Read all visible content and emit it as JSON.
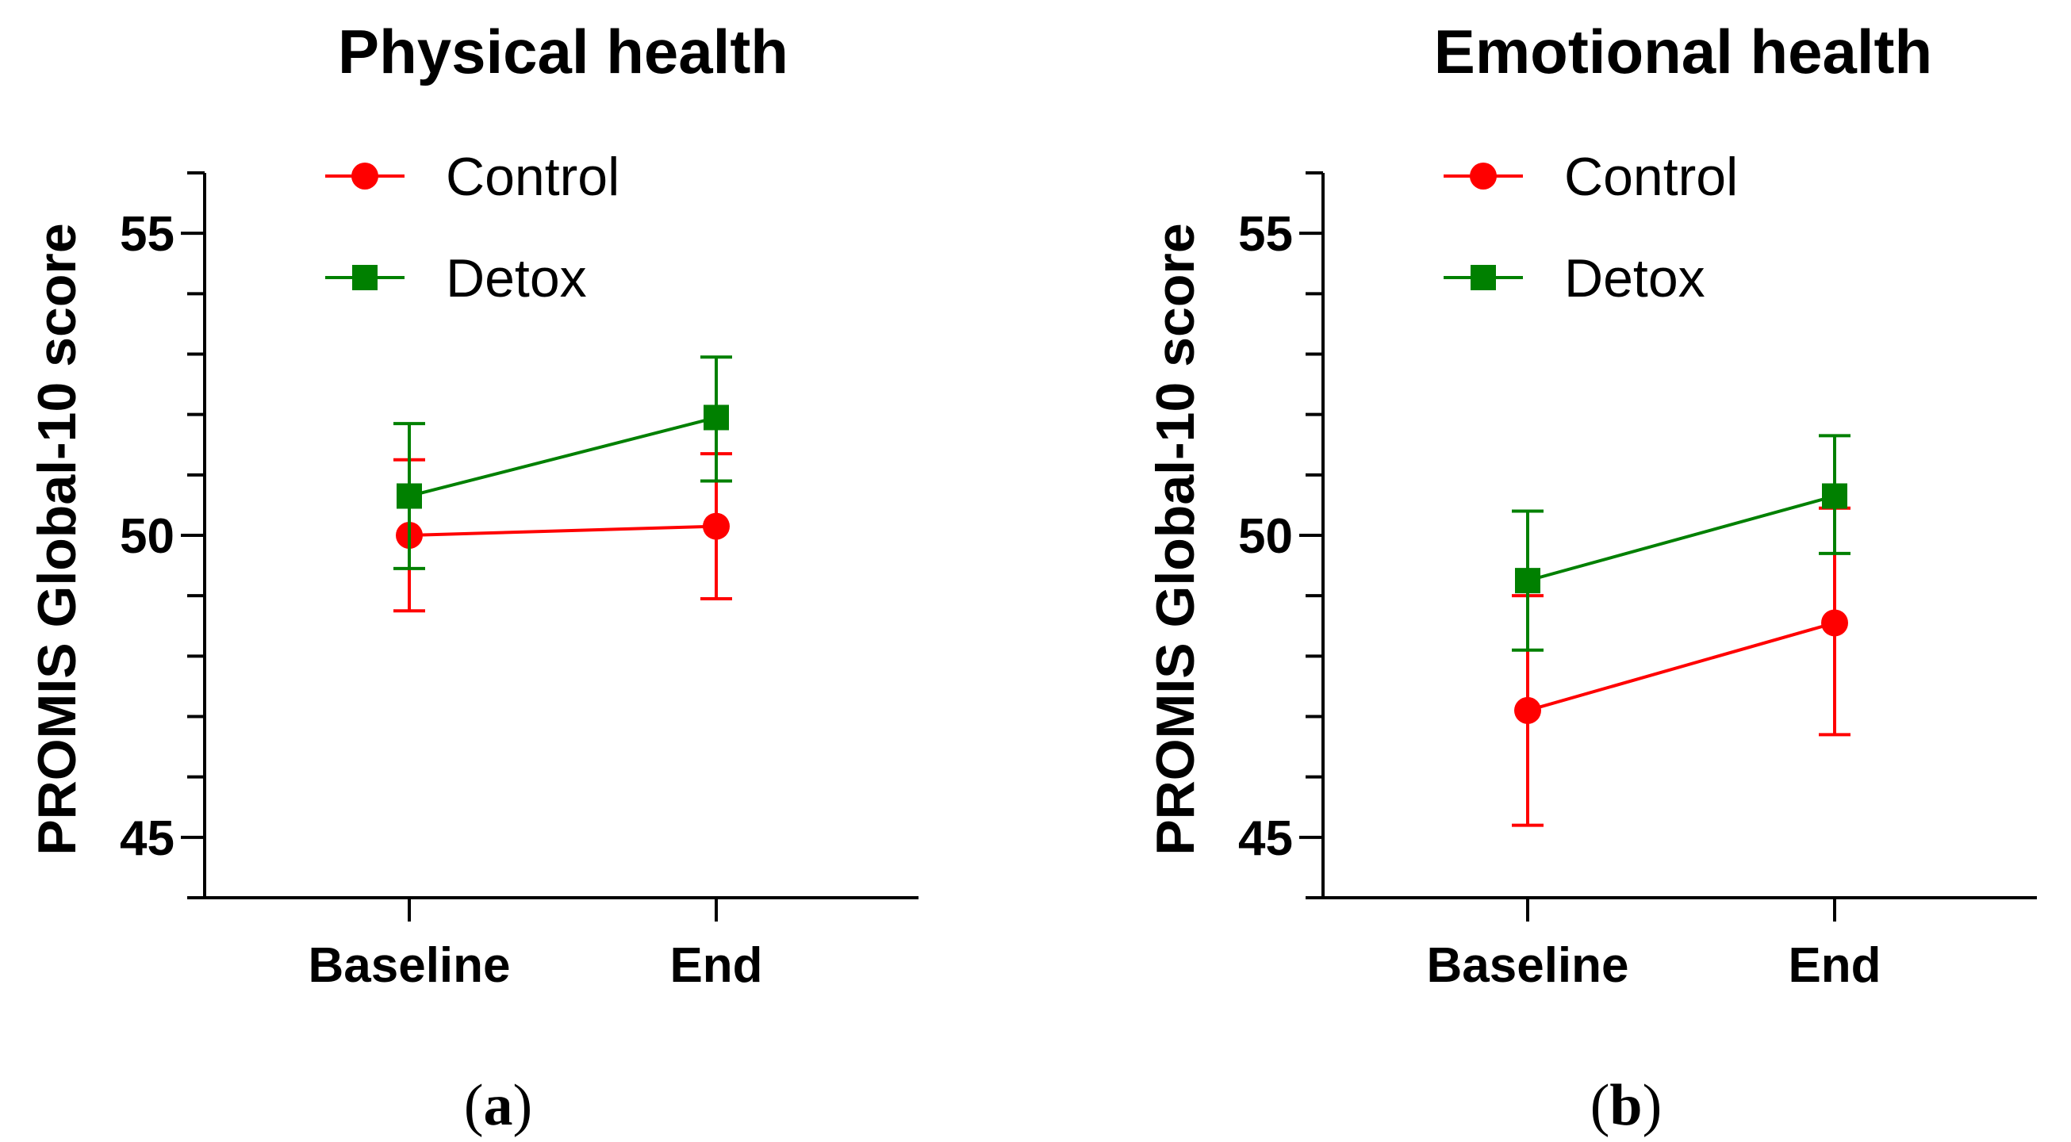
{
  "chart_data": [
    {
      "type": "line",
      "panel_label": "a",
      "title": "Physical health",
      "ylabel": "PROMIS Global-10 score",
      "xlabel": "",
      "categories": [
        "Baseline",
        "End"
      ],
      "ylim": [
        44,
        56
      ],
      "yticks": [
        45,
        50,
        55
      ],
      "legend_position": "top-left",
      "series": [
        {
          "name": "Control",
          "color": "#ff0000",
          "marker": "circle",
          "values": [
            50.0,
            50.15
          ],
          "err_low": [
            48.75,
            48.95
          ],
          "err_high": [
            51.25,
            51.35
          ]
        },
        {
          "name": "Detox",
          "color": "#008000",
          "marker": "square",
          "values": [
            50.65,
            51.95
          ],
          "err_low": [
            49.45,
            50.9
          ],
          "err_high": [
            51.85,
            52.95
          ]
        }
      ]
    },
    {
      "type": "line",
      "panel_label": "b",
      "title": "Emotional health",
      "ylabel": "PROMIS Global-10 score",
      "xlabel": "",
      "categories": [
        "Baseline",
        "End"
      ],
      "ylim": [
        44,
        56
      ],
      "yticks": [
        45,
        50,
        55
      ],
      "legend_position": "top-left",
      "series": [
        {
          "name": "Control",
          "color": "#ff0000",
          "marker": "circle",
          "values": [
            47.1,
            48.55
          ],
          "err_low": [
            45.2,
            46.7
          ],
          "err_high": [
            49.0,
            50.45
          ]
        },
        {
          "name": "Detox",
          "color": "#008000",
          "marker": "square",
          "values": [
            49.25,
            50.65
          ],
          "err_low": [
            48.1,
            49.7
          ],
          "err_high": [
            50.4,
            51.65
          ]
        }
      ]
    }
  ]
}
